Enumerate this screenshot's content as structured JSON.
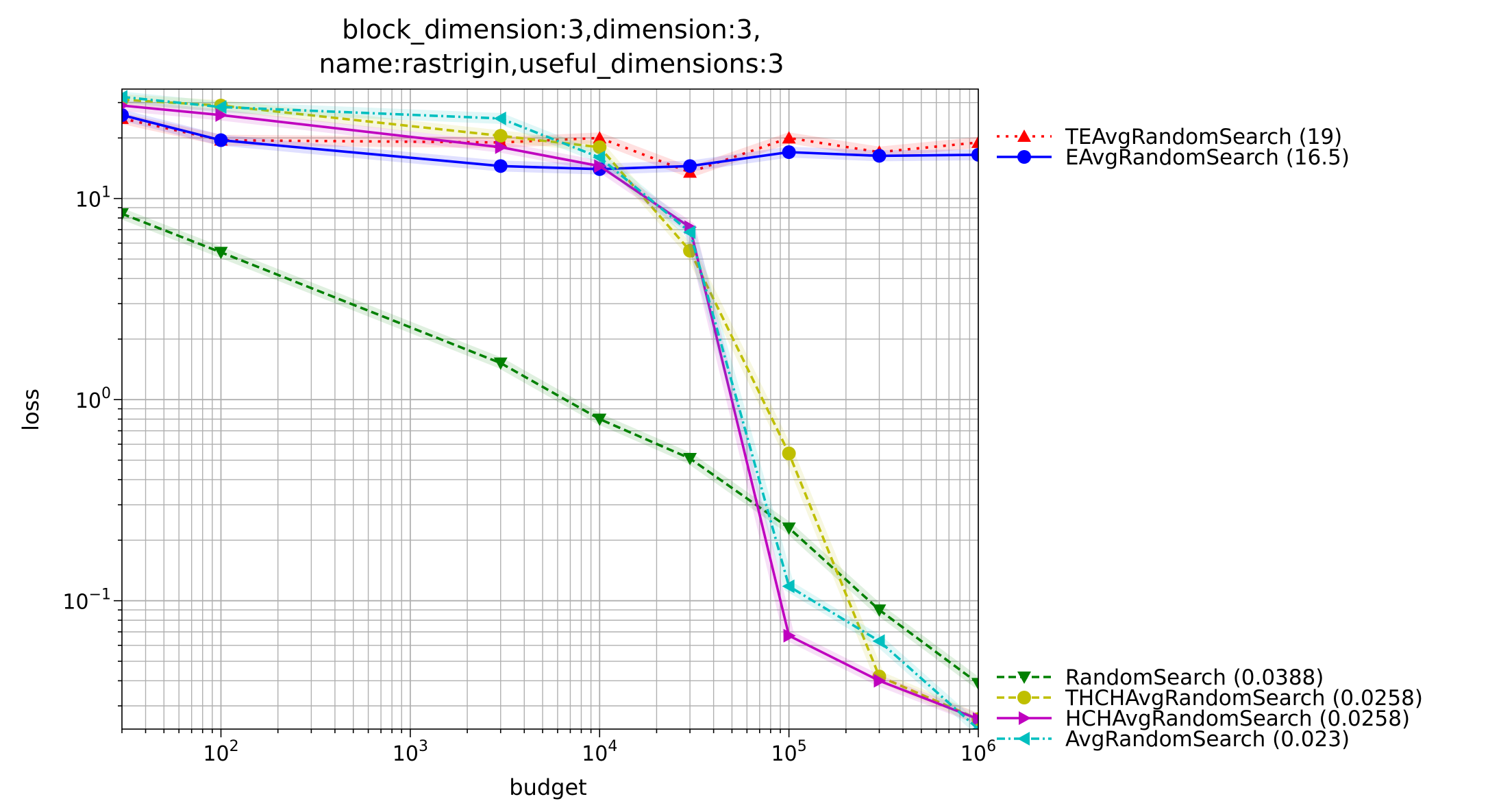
{
  "chart_data": {
    "type": "line",
    "title_lines": [
      "block_dimension:3,dimension:3,",
      "name:rastrigin,useful_dimensions:3"
    ],
    "xlabel": "budget",
    "ylabel": "loss",
    "xscale": "log",
    "yscale": "log",
    "xlim": [
      30,
      1000000
    ],
    "ylim": [
      0.023,
      35
    ],
    "grid": true,
    "x_ticks": [
      {
        "base": "10",
        "exp": "2",
        "value": 100
      },
      {
        "base": "10",
        "exp": "3",
        "value": 1000
      },
      {
        "base": "10",
        "exp": "4",
        "value": 10000
      },
      {
        "base": "10",
        "exp": "5",
        "value": 100000
      },
      {
        "base": "10",
        "exp": "6",
        "value": 1000000
      }
    ],
    "y_ticks": [
      {
        "base": "10",
        "exp": "1",
        "value": 10
      },
      {
        "base": "10",
        "exp": "0",
        "value": 1
      },
      {
        "base": "10",
        "exp": "−1",
        "value": 0.1
      }
    ],
    "legend_top": [
      {
        "label": "TEAvgRandomSearch (19)",
        "series": 0
      },
      {
        "label": "EAvgRandomSearch (16.5)",
        "series": 1
      }
    ],
    "legend_bottom": [
      {
        "label": "RandomSearch (0.0388)",
        "series": 2
      },
      {
        "label": "THCHAvgRandomSearch (0.0258)",
        "series": 3
      },
      {
        "label": "HCHAvgRandomSearch (0.0258)",
        "series": 4
      },
      {
        "label": "AvgRandomSearch (0.023)",
        "series": 5
      }
    ],
    "series": [
      {
        "name": "TEAvgRandomSearch (19)",
        "color": "#ff0000",
        "dash": "4 9",
        "marker": "triangle-up",
        "x": [
          30,
          100,
          3000,
          10000,
          30000,
          100000,
          300000,
          1000000
        ],
        "y": [
          25,
          19.5,
          19,
          20,
          13.5,
          20,
          17,
          19
        ]
      },
      {
        "name": "EAvgRandomSearch (16.5)",
        "color": "#0000ff",
        "dash": "",
        "marker": "circle",
        "x": [
          30,
          100,
          3000,
          10000,
          30000,
          100000,
          300000,
          1000000
        ],
        "y": [
          26,
          19.5,
          14.5,
          14,
          14.5,
          17,
          16.3,
          16.5
        ]
      },
      {
        "name": "RandomSearch (0.0388)",
        "color": "#008000",
        "dash": "11 6",
        "marker": "triangle-down",
        "x": [
          30,
          100,
          3000,
          10000,
          30000,
          100000,
          300000,
          1000000
        ],
        "y": [
          8.4,
          5.4,
          1.52,
          0.8,
          0.51,
          0.23,
          0.09,
          0.0388
        ]
      },
      {
        "name": "THCHAvgRandomSearch (0.0258)",
        "color": "#bfbf00",
        "dash": "11 6",
        "marker": "octagon",
        "x": [
          30,
          100,
          3000,
          10000,
          30000,
          100000,
          300000,
          1000000
        ],
        "y": [
          31,
          29,
          20.5,
          18,
          5.5,
          0.54,
          0.042,
          0.0258
        ]
      },
      {
        "name": "HCHAvgRandomSearch (0.0258)",
        "color": "#bf00bf",
        "dash": "",
        "marker": "triangle-right",
        "x": [
          30,
          100,
          3000,
          10000,
          30000,
          100000,
          300000,
          1000000
        ],
        "y": [
          29,
          26,
          18,
          14.5,
          7.2,
          0.067,
          0.04,
          0.0258
        ]
      },
      {
        "name": "AvgRandomSearch (0.023)",
        "color": "#00bfbf",
        "dash": "12 5 3 5",
        "marker": "triangle-left",
        "x": [
          30,
          100,
          3000,
          10000,
          30000,
          100000,
          300000,
          1000000
        ],
        "y": [
          32,
          28.5,
          25,
          16,
          6.8,
          0.118,
          0.063,
          0.023
        ]
      }
    ]
  }
}
